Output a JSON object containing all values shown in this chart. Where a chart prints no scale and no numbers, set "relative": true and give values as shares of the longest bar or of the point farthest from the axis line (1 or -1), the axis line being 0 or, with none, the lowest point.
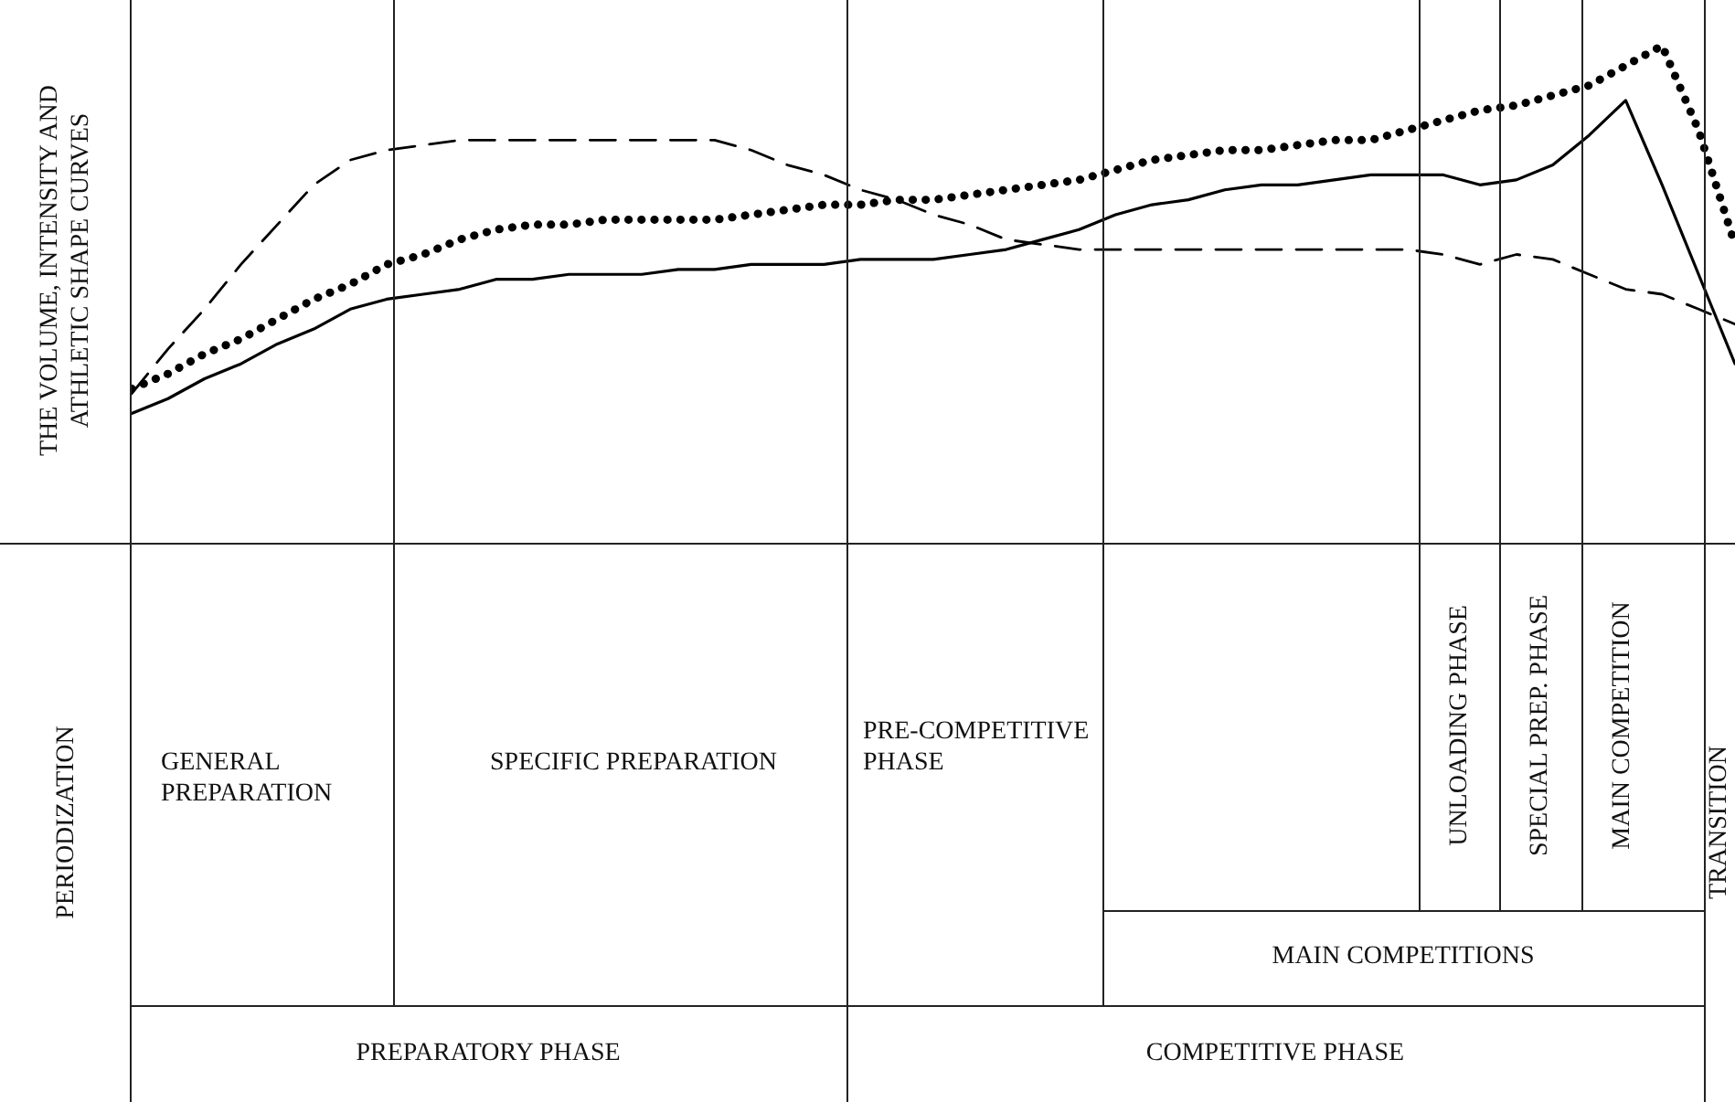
{
  "chart_data": {
    "type": "line",
    "relative": true,
    "ylabel": "THE VOLUME, INTENSITY AND ATHLETIC SHAPE CURVES",
    "categories": [
      null,
      null,
      null,
      null,
      null,
      null,
      null,
      null,
      null,
      null,
      null,
      null,
      null,
      null,
      null,
      null,
      null,
      null,
      null,
      null,
      null,
      null,
      null,
      null,
      null,
      null,
      null,
      null,
      null,
      null,
      null,
      null,
      null,
      null,
      null,
      null,
      null,
      null,
      null,
      null,
      null,
      null,
      null,
      null,
      null
    ],
    "series": [
      {
        "color": "#000000",
        "line_style": "dashed",
        "values": [
          0.3,
          0.39,
          0.47,
          0.56,
          0.64,
          0.72,
          0.77,
          0.79,
          0.8,
          0.81,
          0.81,
          0.81,
          0.81,
          0.81,
          0.81,
          0.81,
          0.81,
          0.79,
          0.76,
          0.74,
          0.71,
          0.69,
          0.66,
          0.64,
          0.61,
          0.6,
          0.59,
          0.59,
          0.59,
          0.59,
          0.59,
          0.59,
          0.59,
          0.59,
          0.59,
          0.59,
          0.58,
          0.56,
          0.58,
          0.57,
          0.54,
          0.51,
          0.5,
          0.47,
          0.44
        ]
      },
      {
        "color": "#000000",
        "line_style": "dotted",
        "values": [
          0.31,
          0.34,
          0.38,
          0.41,
          0.45,
          0.49,
          0.52,
          0.56,
          0.58,
          0.61,
          0.63,
          0.64,
          0.64,
          0.65,
          0.65,
          0.65,
          0.65,
          0.66,
          0.67,
          0.68,
          0.68,
          0.69,
          0.69,
          0.7,
          0.71,
          0.72,
          0.73,
          0.75,
          0.77,
          0.78,
          0.79,
          0.79,
          0.8,
          0.81,
          0.81,
          0.83,
          0.85,
          0.87,
          0.88,
          0.9,
          0.92,
          0.96,
          1.0,
          0.83,
          0.6
        ]
      },
      {
        "color": "#000000",
        "line_style": "solid",
        "values": [
          0.26,
          0.29,
          0.33,
          0.36,
          0.4,
          0.43,
          0.47,
          0.49,
          0.5,
          0.51,
          0.53,
          0.53,
          0.54,
          0.54,
          0.54,
          0.55,
          0.55,
          0.56,
          0.56,
          0.56,
          0.57,
          0.57,
          0.57,
          0.58,
          0.59,
          0.61,
          0.63,
          0.66,
          0.68,
          0.69,
          0.71,
          0.72,
          0.72,
          0.73,
          0.74,
          0.74,
          0.74,
          0.72,
          0.73,
          0.76,
          0.82,
          0.89,
          0.72,
          0.54,
          0.36
        ]
      }
    ],
    "annotations": [
      "PERIODIZATION",
      "GENERAL PREPARATION",
      "SPECIFIC PREPARATION",
      "PRE-COMPETITIVE PHASE",
      "UNLOADING PHASE",
      "SPECIAL PREP. PHASE",
      "MAIN COMPETITION",
      "TRANSITION",
      "MAIN COMPETITIONS",
      "PREPARATORY PHASE",
      "COMPETITIVE PHASE"
    ]
  }
}
